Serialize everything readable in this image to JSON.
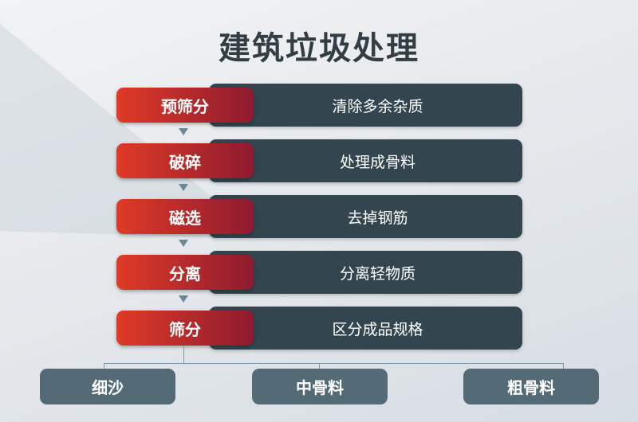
{
  "title": "建筑垃圾处理",
  "steps": [
    {
      "name": "预筛分",
      "desc": "清除多余杂质"
    },
    {
      "name": "破碎",
      "desc": "处理成骨料"
    },
    {
      "name": "磁选",
      "desc": "去掉钢筋"
    },
    {
      "name": "分离",
      "desc": "分离轻物质"
    },
    {
      "name": "筛分",
      "desc": "区分成品规格"
    }
  ],
  "outputs": [
    "细沙",
    "中骨料",
    "粗骨料"
  ],
  "colors": {
    "step_gradient_start": "#e03a26",
    "step_gradient_end": "#8e1b30",
    "desc_box": "#334650",
    "output_box": "#546a77",
    "connector": "#7d98a8"
  }
}
